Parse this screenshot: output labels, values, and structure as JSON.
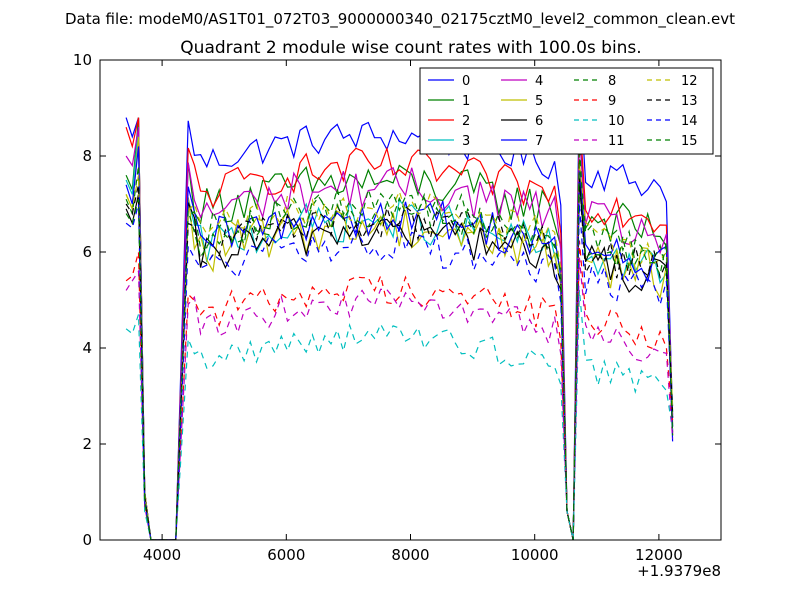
{
  "figure": {
    "suptitle": "Data file: modeM0/AS1T01_072T03_9000000340_02175cztM0_level2_common_clean.evt"
  },
  "chart_data": {
    "type": "line",
    "title": "Quadrant 2 module wise count rates with 100.0s bins.",
    "xlabel": "",
    "ylabel": "",
    "x_offset_label": "+1.9379e8",
    "xlim": [
      3000,
      13000
    ],
    "ylim": [
      0,
      10
    ],
    "x_ticks": [
      4000,
      6000,
      8000,
      10000,
      12000
    ],
    "x_tick_labels": [
      "4000",
      "6000",
      "8000",
      "10000",
      "12000"
    ],
    "y_ticks": [
      0,
      2,
      4,
      6,
      8,
      10
    ],
    "y_tick_labels": [
      "0",
      "2",
      "4",
      "6",
      "8",
      "10"
    ],
    "grid": false,
    "legend_position": "top-right",
    "legend_columns": 4,
    "segments": [
      {
        "x": [
          3420,
          3520,
          3620,
          3720,
          3820,
          3920
        ]
      },
      {
        "x": [
          4220,
          4420,
          4520,
          4620,
          4720,
          4820,
          4920,
          5020,
          5120,
          5220,
          5320,
          5420,
          5520,
          5620,
          5720,
          5820,
          5920,
          6020,
          6120,
          6220,
          6320,
          6420,
          6520,
          6620,
          6720,
          6820,
          6920,
          7020,
          7120,
          7220,
          7320,
          7420,
          7520,
          7620,
          7720,
          7820,
          7920,
          8020,
          8120,
          8220,
          8320,
          8420,
          8520,
          8620,
          8720,
          8820,
          8920,
          9020,
          9120,
          9220,
          9320,
          9420,
          9520,
          9620,
          9720,
          9820,
          9920,
          10020,
          10120,
          10220,
          10320,
          10420,
          10520
        ]
      },
      {
        "x": [
          10620,
          10720,
          10820,
          10920,
          11020,
          11120,
          11220,
          11320,
          11420,
          11520,
          11620,
          11720,
          11820,
          11920,
          12020,
          12120,
          12220
        ]
      }
    ],
    "series": [
      {
        "name": "0",
        "color": "#0000ff",
        "dash": "solid",
        "shape": [
          8.8,
          8.4,
          8.8,
          1.0,
          0.0,
          0.0
        ],
        "level": 7.75,
        "amp": 0.35,
        "trend": 0.12
      },
      {
        "name": "1",
        "color": "#008000",
        "dash": "solid",
        "shape": [
          7.6,
          7.3,
          8.8,
          1.0,
          0.0,
          0.0
        ],
        "level": 6.8,
        "amp": 0.45,
        "trend": 0.1
      },
      {
        "name": "2",
        "color": "#ff0000",
        "dash": "solid",
        "shape": [
          8.6,
          8.2,
          8.8,
          1.0,
          0.0,
          0.0
        ],
        "level": 7.1,
        "amp": 0.4,
        "trend": 0.12
      },
      {
        "name": "3",
        "color": "#00bfbf",
        "dash": "solid",
        "shape": [
          7.5,
          7.2,
          8.6,
          1.0,
          0.0,
          0.0
        ],
        "level": 6.0,
        "amp": 0.45,
        "trend": 0.1
      },
      {
        "name": "4",
        "color": "#bf00bf",
        "dash": "solid",
        "shape": [
          8.0,
          7.8,
          8.6,
          1.0,
          0.0,
          0.0
        ],
        "level": 6.7,
        "amp": 0.45,
        "trend": 0.1
      },
      {
        "name": "5",
        "color": "#bfbf00",
        "dash": "solid",
        "shape": [
          7.2,
          6.9,
          8.4,
          1.0,
          0.0,
          0.0
        ],
        "level": 5.9,
        "amp": 0.5,
        "trend": 0.1
      },
      {
        "name": "6",
        "color": "#000000",
        "dash": "solid",
        "shape": [
          6.9,
          6.6,
          7.2,
          0.9,
          0.0,
          0.0
        ],
        "level": 5.8,
        "amp": 0.45,
        "trend": 0.1
      },
      {
        "name": "7",
        "color": "#0000ff",
        "dash": "solid",
        "shape": [
          7.4,
          7.0,
          8.2,
          0.9,
          0.0,
          0.0
        ],
        "level": 6.1,
        "amp": 0.45,
        "trend": 0.1
      },
      {
        "name": "8",
        "color": "#008000",
        "dash": "dashed",
        "shape": [
          7.1,
          6.8,
          7.8,
          0.9,
          0.0,
          0.0
        ],
        "level": 6.3,
        "amp": 0.4,
        "trend": 0.1
      },
      {
        "name": "9",
        "color": "#ff0000",
        "dash": "dashed",
        "shape": [
          5.4,
          5.5,
          6.0,
          0.7,
          0.0,
          0.0
        ],
        "level": 4.6,
        "amp": 0.35,
        "trend": 0.08
      },
      {
        "name": "10",
        "color": "#00bfbf",
        "dash": "dashed",
        "shape": [
          4.4,
          4.3,
          4.7,
          0.6,
          0.0,
          0.0
        ],
        "level": 3.6,
        "amp": 0.3,
        "trend": 0.08
      },
      {
        "name": "11",
        "color": "#bf00bf",
        "dash": "dashed",
        "shape": [
          5.2,
          5.4,
          5.6,
          0.7,
          0.0,
          0.0
        ],
        "level": 4.3,
        "amp": 0.3,
        "trend": 0.08
      },
      {
        "name": "12",
        "color": "#bfbf00",
        "dash": "dashed",
        "shape": [
          7.2,
          6.9,
          7.6,
          0.9,
          0.0,
          0.0
        ],
        "level": 6.3,
        "amp": 0.4,
        "trend": 0.1
      },
      {
        "name": "13",
        "color": "#000000",
        "dash": "dashed",
        "shape": [
          7.0,
          6.8,
          7.4,
          0.9,
          0.0,
          0.0
        ],
        "level": 6.0,
        "amp": 0.4,
        "trend": 0.1
      },
      {
        "name": "14",
        "color": "#0000ff",
        "dash": "dashed",
        "shape": [
          6.6,
          6.5,
          7.0,
          0.8,
          0.0,
          0.0
        ],
        "level": 5.5,
        "amp": 0.4,
        "trend": 0.1
      },
      {
        "name": "15",
        "color": "#008000",
        "dash": "dashed",
        "shape": [
          6.8,
          6.6,
          7.1,
          0.8,
          0.0,
          0.0
        ],
        "level": 6.2,
        "amp": 0.4,
        "trend": 0.1
      }
    ]
  }
}
